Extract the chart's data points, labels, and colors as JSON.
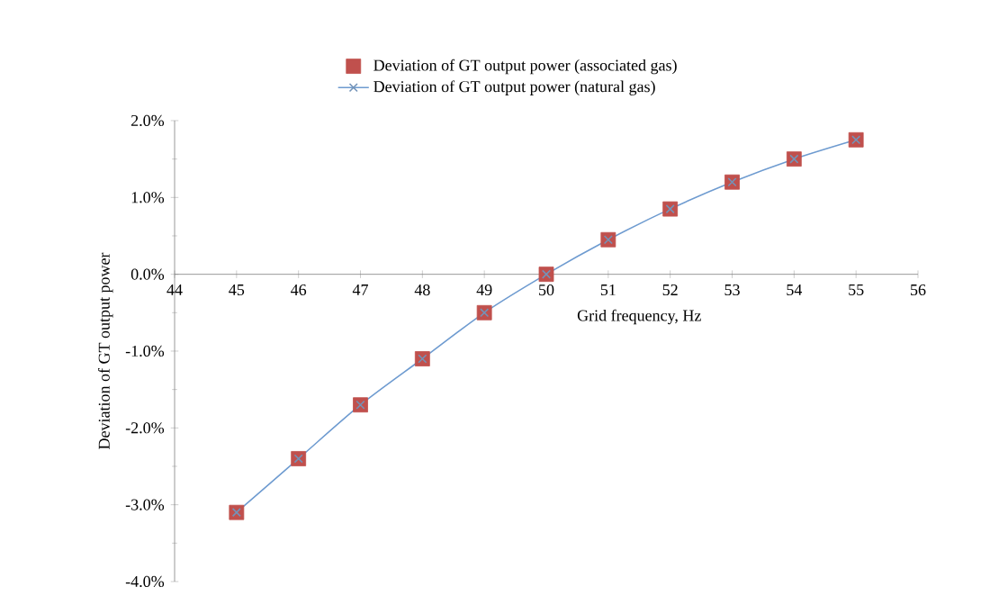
{
  "chart_data": {
    "type": "line",
    "xlabel": "Grid frequency, Hz",
    "ylabel": "Deviation of GT output power",
    "x": [
      45,
      46,
      47,
      48,
      49,
      50,
      51,
      52,
      53,
      54,
      55
    ],
    "series": [
      {
        "name": "Deviation of GT output power (associated gas)",
        "type": "scatter",
        "marker": "square",
        "color": "#c0504d",
        "values": [
          -3.1,
          -2.4,
          -1.7,
          -1.1,
          -0.5,
          0,
          0.45,
          0.85,
          1.2,
          1.5,
          1.75
        ]
      },
      {
        "name": "Deviation of GT output power (natural gas)",
        "marker": "cross",
        "color": "#6e9bd0",
        "values": [
          -3.1,
          -2.4,
          -1.7,
          -1.1,
          -0.5,
          0,
          0.45,
          0.85,
          1.2,
          1.5,
          1.75
        ]
      }
    ],
    "xlim": [
      44,
      56
    ],
    "xticks": [
      44,
      45,
      46,
      47,
      48,
      49,
      50,
      51,
      52,
      53,
      54,
      55,
      56
    ],
    "ylim": [
      -4,
      2
    ],
    "yticks": [
      {
        "value": -4,
        "label": "-4.0%"
      },
      {
        "value": -3,
        "label": "-3.0%"
      },
      {
        "value": -2,
        "label": "-2.0%"
      },
      {
        "value": -1,
        "label": "-1.0%"
      },
      {
        "value": 0,
        "label": "0.0%"
      },
      {
        "value": 1,
        "label": "1.0%"
      },
      {
        "value": 2,
        "label": "2.0%"
      }
    ],
    "grid": false,
    "legend": "top"
  }
}
